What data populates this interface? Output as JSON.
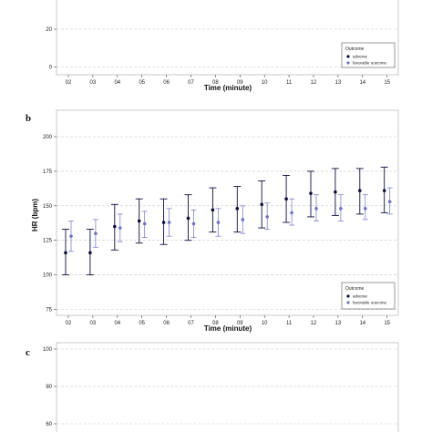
{
  "figure": {
    "panel_labels": [
      "b",
      "c"
    ]
  },
  "chart_data": [
    {
      "type": "scatter",
      "panel": "a",
      "title": "",
      "xlabel": "Time (minute)",
      "ylabel": "",
      "categories": [
        "02",
        "03",
        "04",
        "05",
        "06",
        "07",
        "08",
        "09",
        "10",
        "11",
        "12",
        "13",
        "14",
        "15"
      ],
      "yticks": [
        0,
        20
      ],
      "grid": true,
      "legend": {
        "title": "Outcome",
        "entries": [
          "adverse",
          "favorable outcome"
        ],
        "position": "bottom-right"
      },
      "series": []
    },
    {
      "type": "scatter",
      "panel": "b",
      "title": "",
      "xlabel": "Time (minute)",
      "ylabel": "HR (bpm)",
      "categories": [
        "02",
        "03",
        "04",
        "05",
        "06",
        "07",
        "08",
        "09",
        "10",
        "11",
        "12",
        "13",
        "14",
        "15"
      ],
      "ylim": [
        72,
        204
      ],
      "yticks": [
        75,
        100,
        125,
        150,
        175,
        200
      ],
      "grid": true,
      "legend": {
        "title": "Outcome",
        "entries": [
          "adverse",
          "favorable outcome"
        ],
        "position": "bottom-right"
      },
      "series": [
        {
          "name": "adverse",
          "color": "#0d0d40",
          "values": [
            116,
            116,
            135,
            139,
            138,
            141,
            147,
            148,
            151,
            155,
            159,
            160,
            161,
            161
          ],
          "lower": [
            100,
            100,
            118,
            123,
            122,
            125,
            131,
            131,
            134,
            138,
            142,
            143,
            144,
            145
          ],
          "upper": [
            133,
            133,
            151,
            155,
            155,
            158,
            163,
            164,
            168,
            172,
            175,
            177,
            177,
            178
          ]
        },
        {
          "name": "favorable outcome",
          "color": "#6c73c9",
          "values": [
            128,
            130,
            134,
            137,
            138,
            137,
            138,
            140,
            142,
            145,
            148,
            148,
            148,
            153
          ],
          "lower": [
            117,
            120,
            124,
            127,
            128,
            127,
            128,
            130,
            133,
            136,
            139,
            139,
            140,
            144
          ],
          "upper": [
            139,
            140,
            144,
            146,
            148,
            147,
            148,
            150,
            152,
            155,
            158,
            158,
            158,
            163
          ]
        }
      ]
    },
    {
      "type": "scatter",
      "panel": "c",
      "title": "",
      "xlabel": "",
      "ylabel": "",
      "categories": [],
      "yticks": [
        60,
        80,
        100
      ],
      "grid": true,
      "series": []
    }
  ]
}
